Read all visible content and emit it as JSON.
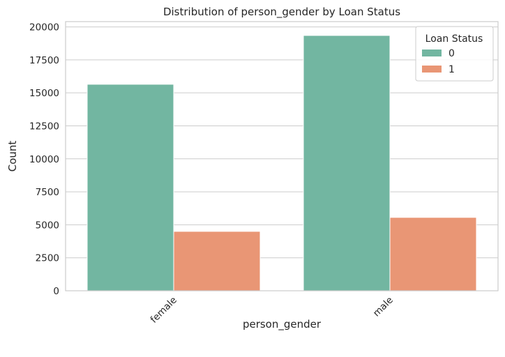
{
  "chart_data": {
    "type": "bar",
    "title": "Distribution of person_gender by Loan Status",
    "xlabel": "person_gender",
    "ylabel": "Count",
    "categories": [
      "female",
      "male"
    ],
    "series": [
      {
        "name": "0",
        "values": [
          15650,
          19350
        ]
      },
      {
        "name": "1",
        "values": [
          4500,
          5560
        ]
      }
    ],
    "ylim": [
      0,
      20400
    ],
    "yticks": [
      0,
      2500,
      5000,
      7500,
      10000,
      12500,
      15000,
      17500,
      20000
    ],
    "ytick_labels": [
      "0",
      "2500",
      "5000",
      "7500",
      "10000",
      "12500",
      "15000",
      "17500",
      "20000"
    ],
    "legend": {
      "title": "Loan Status",
      "placement": "top-right"
    },
    "grid": "horizontal",
    "colors": [
      "#72b6a1",
      "#e99675"
    ],
    "x_tick_rotation": 45
  }
}
